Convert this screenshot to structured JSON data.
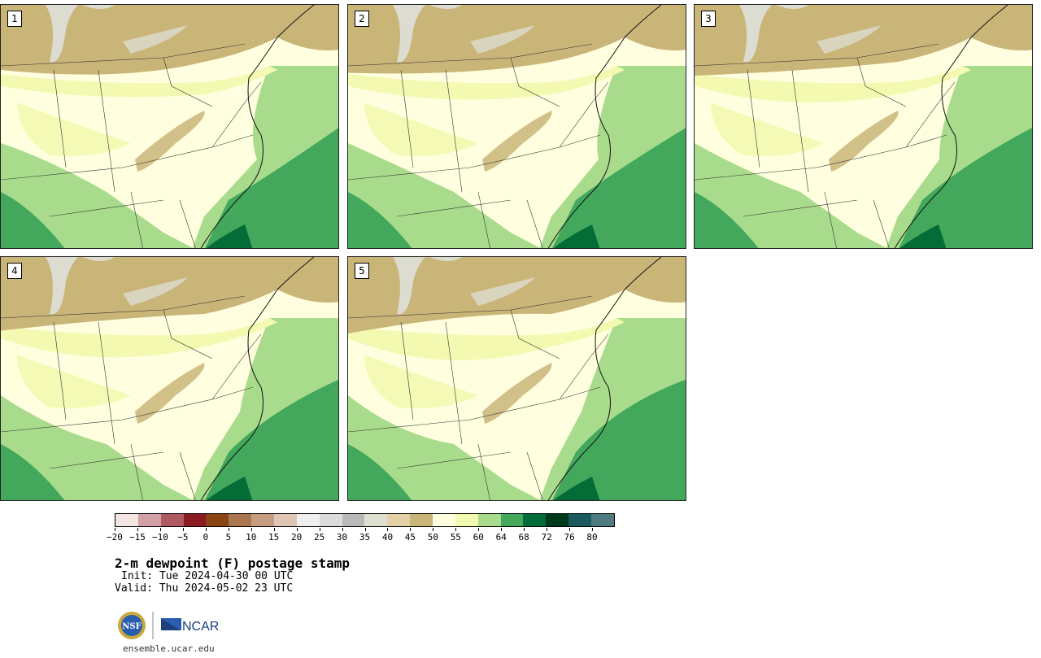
{
  "panels": [
    {
      "label": "1"
    },
    {
      "label": "2"
    },
    {
      "label": "3"
    },
    {
      "label": "4"
    },
    {
      "label": "5"
    }
  ],
  "colorbar": {
    "colors": [
      "#f4e4e4",
      "#d3a0a6",
      "#b05a62",
      "#8b1a22",
      "#8b4513",
      "#a97650",
      "#c69c82",
      "#e0c4b4",
      "#efefef",
      "#dcdcdc",
      "#b9b9b9",
      "#e0e0d2",
      "#e4d1a8",
      "#cab579",
      "#ffffe0",
      "#f3f9b0",
      "#a8dc8c",
      "#43a85c",
      "#046c36",
      "#003a1c",
      "#1b5a5e",
      "#4e7c80"
    ],
    "tick_labels": [
      "−20",
      "−15",
      "−10",
      "−5",
      "0",
      "5",
      "10",
      "15",
      "20",
      "25",
      "30",
      "35",
      "40",
      "45",
      "50",
      "55",
      "60",
      "64",
      "68",
      "72",
      "76",
      "80"
    ]
  },
  "title": "2-m dewpoint (F) postage stamp",
  "init": "Init: Tue 2024-04-30 00 UTC",
  "valid": "Valid: Thu 2024-05-02 23 UTC",
  "footer": {
    "logo_nsf": "NSF",
    "logo_ncar": "NCAR",
    "url": "ensemble.ucar.edu"
  },
  "map_colors": {
    "brown": "#cab579",
    "gray": "#dcdcd0",
    "pale": "#ffffe0",
    "yellow": "#f3f9b0",
    "lightgreen": "#a8dc8c",
    "green": "#43a85c",
    "darkgreen": "#046c36"
  }
}
